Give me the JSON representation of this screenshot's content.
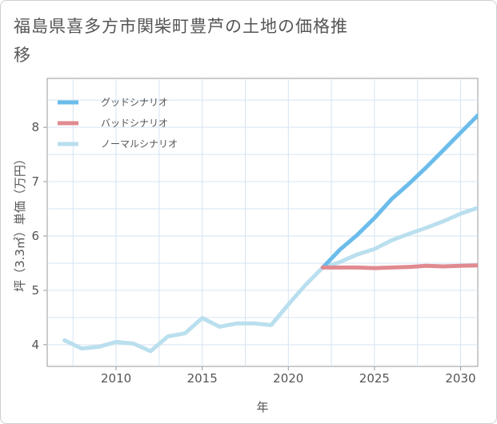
{
  "title": "福島県喜多方市関柴町豊芦の土地の価格推移",
  "chart_data": {
    "type": "line",
    "xlabel": "年",
    "ylabel": "坪（3.3㎡）単価（万円）",
    "xlim": [
      2006,
      2031
    ],
    "ylim": [
      3.6,
      8.9
    ],
    "x_ticks": [
      "2010",
      "2015",
      "2020",
      "2025",
      "2030"
    ],
    "y_ticks": [
      "4",
      "5",
      "6",
      "7",
      "8"
    ],
    "grid": true,
    "legend_position": "top-left",
    "series": [
      {
        "name": "グッドシナリオ",
        "color": "#6bbcea",
        "x": [
          2022,
          2023,
          2024,
          2025,
          2026,
          2027,
          2028,
          2029,
          2030,
          2031
        ],
        "y": [
          5.42,
          5.75,
          6.02,
          6.33,
          6.68,
          6.96,
          7.26,
          7.58,
          7.9,
          8.22
        ]
      },
      {
        "name": "バッドシナリオ",
        "color": "#e08a90",
        "x": [
          2022,
          2023,
          2024,
          2025,
          2026,
          2027,
          2028,
          2029,
          2030,
          2031
        ],
        "y": [
          5.42,
          5.42,
          5.42,
          5.41,
          5.42,
          5.43,
          5.45,
          5.44,
          5.45,
          5.46
        ]
      },
      {
        "name": "ノーマルシナリオ",
        "color": "#badfee",
        "x": [
          2007,
          2008,
          2009,
          2010,
          2011,
          2012,
          2013,
          2014,
          2015,
          2016,
          2017,
          2018,
          2019,
          2020,
          2021,
          2022,
          2023,
          2024,
          2025,
          2026,
          2027,
          2028,
          2029,
          2030,
          2031
        ],
        "y": [
          4.08,
          3.93,
          3.96,
          4.05,
          4.02,
          3.88,
          4.15,
          4.21,
          4.49,
          4.33,
          4.39,
          4.39,
          4.36,
          4.74,
          5.1,
          5.42,
          5.52,
          5.66,
          5.76,
          5.92,
          6.04,
          6.15,
          6.27,
          6.41,
          6.52
        ]
      }
    ]
  }
}
